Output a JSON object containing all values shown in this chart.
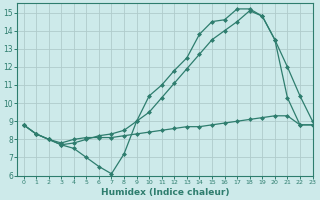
{
  "line1_x": [
    0,
    1,
    2,
    3,
    4,
    5,
    6,
    7,
    8,
    9,
    10,
    11,
    12,
    13,
    14,
    15,
    16,
    17,
    18,
    19,
    20,
    21,
    22,
    23
  ],
  "line1_y": [
    8.8,
    8.3,
    8.0,
    7.7,
    7.5,
    7.0,
    6.5,
    6.1,
    7.2,
    9.0,
    10.4,
    11.0,
    11.8,
    12.5,
    13.8,
    14.5,
    14.6,
    15.2,
    15.2,
    14.8,
    13.5,
    10.3,
    8.8,
    8.8
  ],
  "line2_x": [
    0,
    1,
    2,
    3,
    4,
    5,
    6,
    7,
    8,
    9,
    10,
    11,
    12,
    13,
    14,
    15,
    16,
    17,
    18,
    19,
    20,
    21,
    22,
    23
  ],
  "line2_y": [
    8.8,
    8.3,
    8.0,
    7.8,
    8.0,
    8.1,
    8.1,
    8.1,
    8.2,
    8.3,
    8.4,
    8.5,
    8.6,
    8.7,
    8.7,
    8.8,
    8.9,
    9.0,
    9.1,
    9.2,
    9.3,
    9.3,
    8.8,
    8.8
  ],
  "line3_x": [
    0,
    1,
    2,
    3,
    4,
    5,
    6,
    7,
    8,
    9,
    10,
    11,
    12,
    13,
    14,
    15,
    16,
    17,
    18,
    19,
    20,
    21,
    22,
    23
  ],
  "line3_y": [
    8.8,
    8.3,
    8.0,
    7.7,
    7.8,
    8.0,
    8.2,
    8.3,
    8.5,
    9.0,
    9.5,
    10.3,
    11.1,
    11.9,
    12.7,
    13.5,
    14.0,
    14.5,
    15.1,
    14.8,
    13.5,
    12.0,
    10.4,
    9.0
  ],
  "color": "#2e7d6e",
  "background_color": "#cdeaea",
  "grid_color": "#b0cccc",
  "xlabel": "Humidex (Indice chaleur)",
  "xlim": [
    -0.5,
    23
  ],
  "ylim": [
    6,
    15.5
  ],
  "yticks": [
    6,
    7,
    8,
    9,
    10,
    11,
    12,
    13,
    14,
    15
  ],
  "xticks": [
    0,
    1,
    2,
    3,
    4,
    5,
    6,
    7,
    8,
    9,
    10,
    11,
    12,
    13,
    14,
    15,
    16,
    17,
    18,
    19,
    20,
    21,
    22,
    23
  ],
  "marker": "D",
  "marker_size": 2.0,
  "line_width": 0.9
}
